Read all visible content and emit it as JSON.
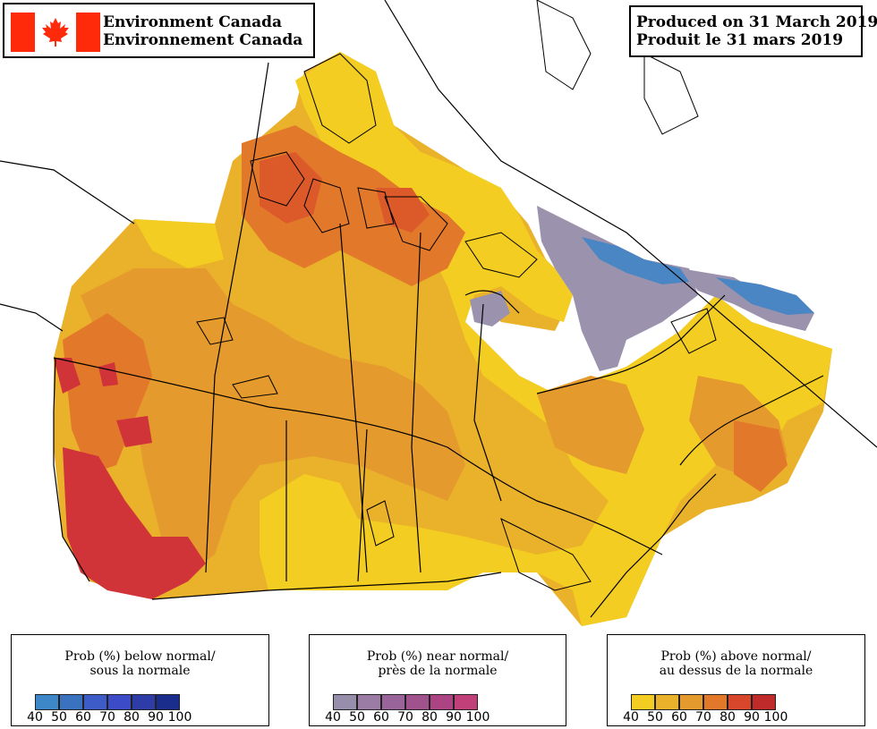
{
  "header": {
    "agency_en": "Environment Canada",
    "agency_fr": "Environnement Canada",
    "produced_en": "Produced on 31 March 2019",
    "produced_fr": "Produit le 31 mars 2019"
  },
  "colors": {
    "yellow40": "#f3cd21",
    "orange50": "#eab12a",
    "orange60": "#e59a2d",
    "orange70": "#e2792a",
    "red80": "#dc5a2a",
    "red90": "#d13438",
    "near_normal": "#9b92ae",
    "below_normal": "#4a86c4",
    "flag_red": "#ff2a0a"
  },
  "legends": [
    {
      "title_line1": "Prob (%) below normal/",
      "title_line2": "sous la normale",
      "colors": [
        "#3d86c8",
        "#3a72c0",
        "#3e5cc8",
        "#3c4cc8",
        "#2e3ca8",
        "#1a2c8c"
      ],
      "ticks": [
        "40",
        "50",
        "60",
        "70",
        "80",
        "90",
        "100"
      ]
    },
    {
      "title_line1": "Prob (%) near normal/",
      "title_line2": "près de la normale",
      "colors": [
        "#968eaa",
        "#9a7ca4",
        "#98649a",
        "#a0528c",
        "#ac4484",
        "#c2407a"
      ],
      "ticks": [
        "40",
        "50",
        "60",
        "70",
        "80",
        "90",
        "100"
      ]
    },
    {
      "title_line1": "Prob (%) above normal/",
      "title_line2": "au dessus de la normale",
      "colors": [
        "#f3cd21",
        "#eab12a",
        "#e59a2d",
        "#e2792a",
        "#d8462c",
        "#bf2a2a"
      ],
      "ticks": [
        "40",
        "50",
        "60",
        "70",
        "80",
        "90",
        "100"
      ]
    }
  ]
}
